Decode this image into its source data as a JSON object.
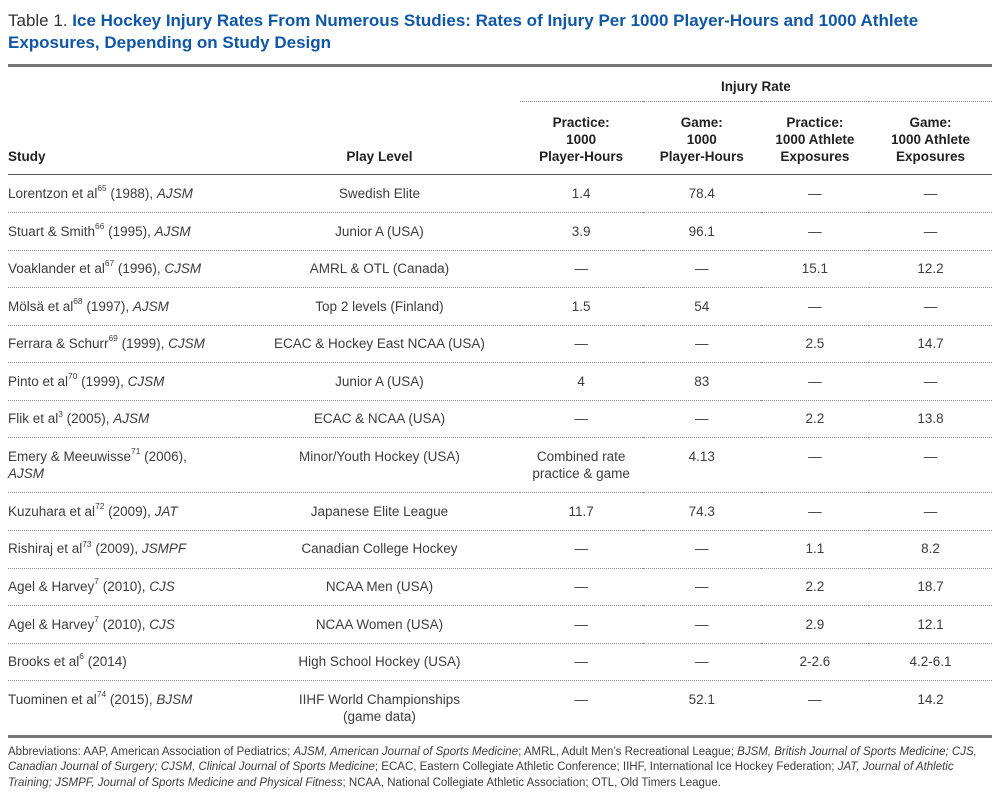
{
  "title": {
    "prefix": "Table 1. ",
    "main": "Ice Hockey Injury Rates From Numerous Studies: Rates of Injury Per 1000 Player-Hours and 1000 Athlete\nExposures, Depending on Study Design"
  },
  "colors": {
    "title_blue": "#1057a5",
    "rule_gray": "#767676",
    "body_text": "#3d3d3d"
  },
  "table": {
    "group_header": "Injury Rate",
    "columns": [
      "Study",
      "Play Level",
      "Practice:\n1000\nPlayer-Hours",
      "Game:\n1000\nPlayer-Hours",
      "Practice:\n1000 Athlete\nExposures",
      "Game:\n1000 Athlete\nExposures"
    ],
    "rows": [
      {
        "study": {
          "pre": "Lorentzon et al",
          "sup": "65",
          "mid": " (1988), ",
          "journal": "AJSM"
        },
        "play_level": "Swedish Elite",
        "practice_ph": "1.4",
        "game_ph": "78.4",
        "practice_ae": "—",
        "game_ae": "—"
      },
      {
        "study": {
          "pre": "Stuart & Smith",
          "sup": "66",
          "mid": " (1995), ",
          "journal": "AJSM"
        },
        "play_level": "Junior A (USA)",
        "practice_ph": "3.9",
        "game_ph": "96.1",
        "practice_ae": "—",
        "game_ae": "—"
      },
      {
        "study": {
          "pre": "Voaklander et al",
          "sup": "67",
          "mid": " (1996), ",
          "journal": "CJSM"
        },
        "play_level": "AMRL & OTL (Canada)",
        "practice_ph": "—",
        "game_ph": "—",
        "practice_ae": "15.1",
        "game_ae": "12.2"
      },
      {
        "study": {
          "pre": "Mölsä et al",
          "sup": "68",
          "mid": " (1997), ",
          "journal": "AJSM"
        },
        "play_level": "Top 2 levels (Finland)",
        "practice_ph": "1.5",
        "game_ph": "54",
        "practice_ae": "—",
        "game_ae": "—"
      },
      {
        "study": {
          "pre": "Ferrara & Schurr",
          "sup": "69",
          "mid": " (1999), ",
          "journal": "CJSM"
        },
        "play_level": "ECAC & Hockey East NCAA (USA)",
        "practice_ph": "—",
        "game_ph": "—",
        "practice_ae": "2.5",
        "game_ae": "14.7"
      },
      {
        "study": {
          "pre": "Pinto et al",
          "sup": "70",
          "mid": " (1999), ",
          "journal": "CJSM"
        },
        "play_level": "Junior A (USA)",
        "practice_ph": "4",
        "game_ph": "83",
        "practice_ae": "—",
        "game_ae": "—"
      },
      {
        "study": {
          "pre": "Flik et al",
          "sup": "3",
          "mid": " (2005), ",
          "journal": "AJSM"
        },
        "play_level": "ECAC & NCAA (USA)",
        "practice_ph": "—",
        "game_ph": "—",
        "practice_ae": "2.2",
        "game_ae": "13.8"
      },
      {
        "study": {
          "pre": "Emery & Meeuwisse",
          "sup": "71",
          "mid": " (2006),\n",
          "journal": "AJSM"
        },
        "play_level": "Minor/Youth Hockey (USA)",
        "practice_ph": "Combined rate\npractice & game",
        "game_ph": "4.13",
        "practice_ae": "—",
        "game_ae": "—"
      },
      {
        "study": {
          "pre": "Kuzuhara et al",
          "sup": "72",
          "mid": " (2009), ",
          "journal": "JAT"
        },
        "play_level": "Japanese Elite League",
        "practice_ph": "11.7",
        "game_ph": "74.3",
        "practice_ae": "—",
        "game_ae": "—"
      },
      {
        "study": {
          "pre": "Rishiraj et al",
          "sup": "73",
          "mid": " (2009), ",
          "journal": "JSMPF"
        },
        "play_level": "Canadian College Hockey",
        "practice_ph": "—",
        "game_ph": "—",
        "practice_ae": "1.1",
        "game_ae": "8.2"
      },
      {
        "study": {
          "pre": "Agel & Harvey",
          "sup": "7",
          "mid": " (2010), ",
          "journal": "CJS"
        },
        "play_level": "NCAA Men (USA)",
        "practice_ph": "—",
        "game_ph": "—",
        "practice_ae": "2.2",
        "game_ae": "18.7"
      },
      {
        "study": {
          "pre": "Agel & Harvey",
          "sup": "7",
          "mid": " (2010), ",
          "journal": "CJS"
        },
        "play_level": "NCAA Women (USA)",
        "practice_ph": "—",
        "game_ph": "—",
        "practice_ae": "2.9",
        "game_ae": "12.1"
      },
      {
        "study": {
          "pre": "Brooks et al",
          "sup": "6",
          "mid": " (2014)",
          "journal": ""
        },
        "play_level": "High School Hockey (USA)",
        "practice_ph": "—",
        "game_ph": "—",
        "practice_ae": "2-2.6",
        "game_ae": "4.2-6.1"
      },
      {
        "study": {
          "pre": "Tuominen et al",
          "sup": "74",
          "mid": " (2015), ",
          "journal": "BJSM"
        },
        "play_level": "IIHF World Championships\n(game data)",
        "practice_ph": "—",
        "game_ph": "52.1",
        "practice_ae": "—",
        "game_ae": "14.2"
      }
    ]
  },
  "footnote": {
    "segments": [
      {
        "text": "Abbreviations: AAP, American Association of Pediatrics; ",
        "italic": false
      },
      {
        "text": "AJSM, American Journal of Sports Medicine",
        "italic": true
      },
      {
        "text": "; AMRL, Adult Men’s Recreational League; ",
        "italic": false
      },
      {
        "text": "BJSM, British Journal of Sports Medicine; CJS, Canadian Journal of Surgery; CJSM, Clinical Journal of Sports Medicine",
        "italic": true
      },
      {
        "text": "; ECAC, Eastern Collegiate Athletic Conference; IIHF, International Ice Hockey Federation; ",
        "italic": false
      },
      {
        "text": "JAT, Journal of Athletic Training; JSMPF, Journal of Sports Medicine and Physical Fitness",
        "italic": true
      },
      {
        "text": "; NCAA, National Collegiate Athletic Association; OTL, Old Timers League.",
        "italic": false
      }
    ]
  }
}
